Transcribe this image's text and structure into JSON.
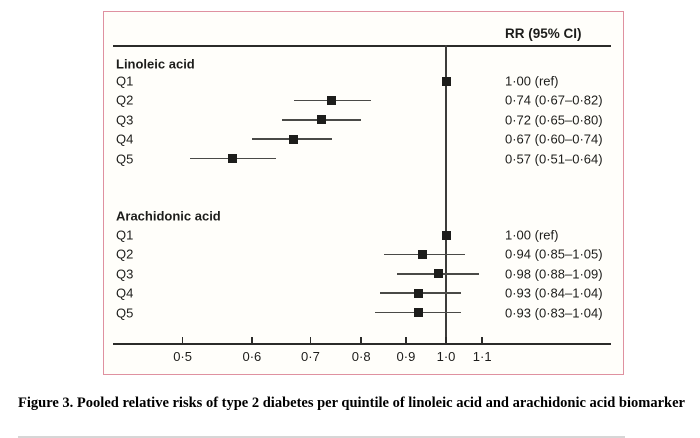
{
  "caption": "Figure 3. Pooled relative risks of type 2 diabetes per quintile of linoleic acid and arachidonic acid biomarker",
  "colors": {
    "plot_border": "#df91a0",
    "plot_background": "#fffefa",
    "marker": "#1d1d1b",
    "ci_line": "#4a4a47",
    "axis": "#2b2b29",
    "text": "#1d1d1b"
  },
  "chart_data": {
    "type": "scatter",
    "subtype": "forest-plot",
    "title": "",
    "column_header": "RR (95% CI)",
    "x_axis": {
      "scale": "log",
      "range": [
        0.42,
        1.35
      ],
      "reference_line": 1.0,
      "ticks": [
        0.5,
        0.6,
        0.7,
        0.8,
        0.9,
        1.0,
        1.1
      ],
      "tick_labels": [
        "0·5",
        "0·6",
        "0·7",
        "0·8",
        "0·9",
        "1·0",
        "1·1"
      ],
      "grid": false
    },
    "groups": [
      {
        "label": "Linoleic acid",
        "rows": [
          {
            "label": "Q1",
            "rr": 1.0,
            "ci_low": null,
            "ci_high": null,
            "text": "1·00 (ref)"
          },
          {
            "label": "Q2",
            "rr": 0.74,
            "ci_low": 0.67,
            "ci_high": 0.82,
            "text": "0·74 (0·67–0·82)"
          },
          {
            "label": "Q3",
            "rr": 0.72,
            "ci_low": 0.65,
            "ci_high": 0.8,
            "text": "0·72 (0·65–0·80)"
          },
          {
            "label": "Q4",
            "rr": 0.67,
            "ci_low": 0.6,
            "ci_high": 0.74,
            "text": "0·67 (0·60–0·74)"
          },
          {
            "label": "Q5",
            "rr": 0.57,
            "ci_low": 0.51,
            "ci_high": 0.64,
            "text": "0·57 (0·51–0·64)"
          }
        ]
      },
      {
        "label": "Arachidonic acid",
        "rows": [
          {
            "label": "Q1",
            "rr": 1.0,
            "ci_low": null,
            "ci_high": null,
            "text": "1·00 (ref)"
          },
          {
            "label": "Q2",
            "rr": 0.94,
            "ci_low": 0.85,
            "ci_high": 1.05,
            "text": "0·94 (0·85–1·05)"
          },
          {
            "label": "Q3",
            "rr": 0.98,
            "ci_low": 0.88,
            "ci_high": 1.09,
            "text": "0·98 (0·88–1·09)"
          },
          {
            "label": "Q4",
            "rr": 0.93,
            "ci_low": 0.84,
            "ci_high": 1.04,
            "text": "0·93 (0·84–1·04)"
          },
          {
            "label": "Q5",
            "rr": 0.93,
            "ci_low": 0.83,
            "ci_high": 1.04,
            "text": "0·93 (0·83–1·04)"
          }
        ]
      }
    ]
  }
}
